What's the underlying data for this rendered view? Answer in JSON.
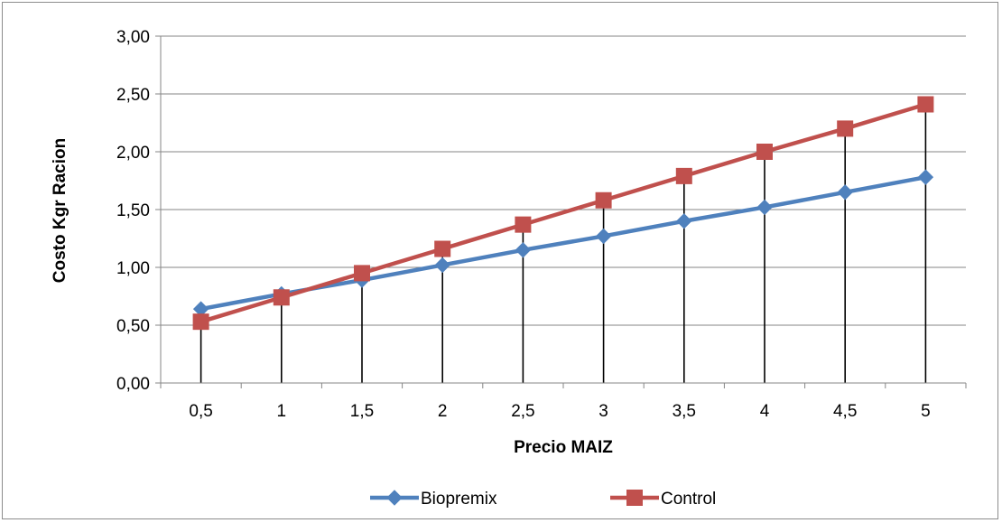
{
  "chart_data": {
    "type": "line",
    "title": "",
    "xlabel": "Precio MAIZ",
    "ylabel": "Costo Kgr Racion",
    "categories": [
      "0,5",
      "1",
      "1,5",
      "2",
      "2,5",
      "3",
      "3,5",
      "4",
      "4,5",
      "5"
    ],
    "y_tick_labels": [
      "0,00",
      "0,50",
      "1,00",
      "1,50",
      "2,00",
      "2,50",
      "3,00"
    ],
    "ylim": [
      0,
      3
    ],
    "y_step": 0.5,
    "grid": true,
    "drop_lines": true,
    "legend_position": "bottom",
    "series": [
      {
        "name": "Biopremix",
        "marker": "diamond",
        "color": "#4f81bd",
        "values": [
          0.64,
          0.77,
          0.89,
          1.02,
          1.15,
          1.27,
          1.4,
          1.52,
          1.65,
          1.78
        ]
      },
      {
        "name": "Control",
        "marker": "square",
        "color": "#c0504d",
        "values": [
          0.53,
          0.74,
          0.95,
          1.16,
          1.37,
          1.58,
          1.79,
          2.0,
          2.2,
          2.41
        ]
      }
    ]
  }
}
